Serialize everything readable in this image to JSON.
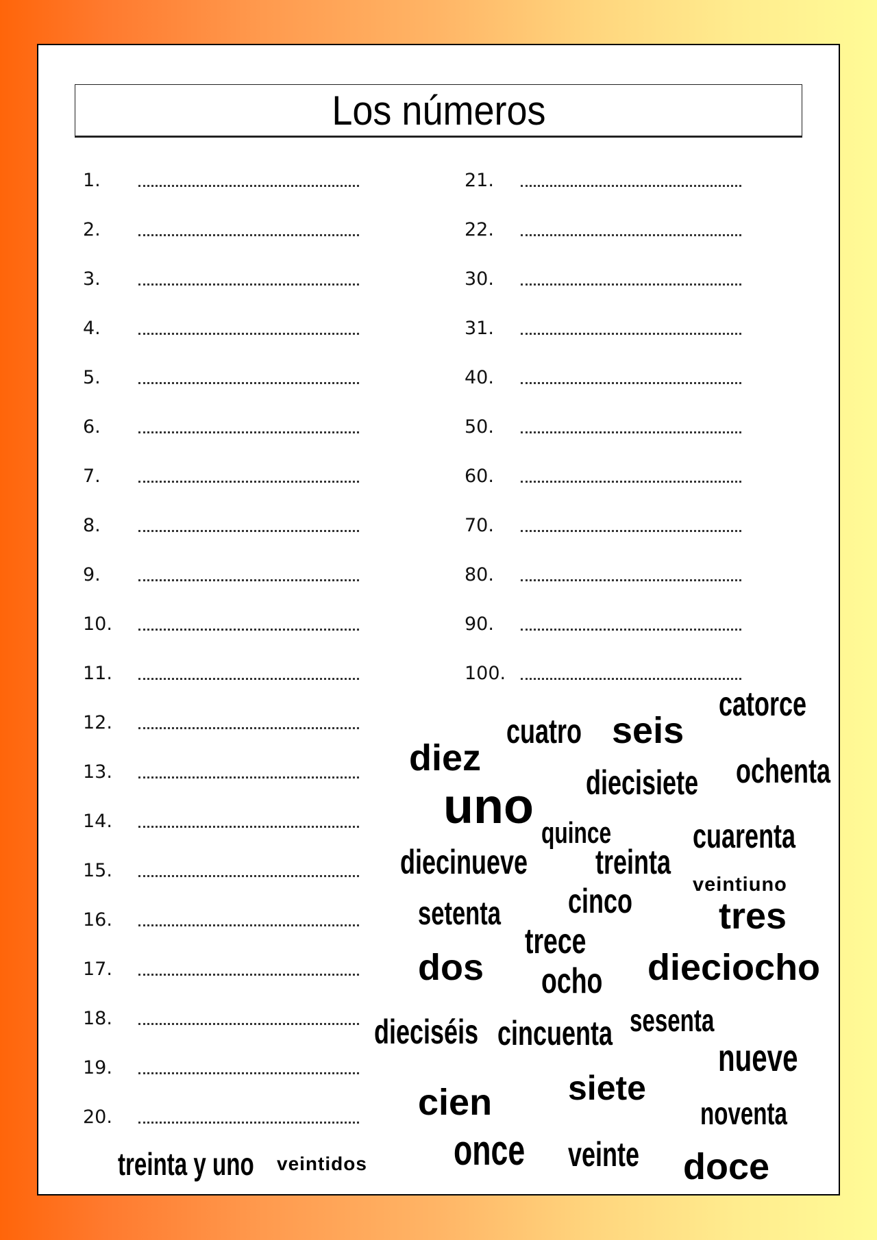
{
  "title": "Los números",
  "left_column": [
    "1.",
    "2.",
    "3.",
    "4.",
    "5.",
    "6.",
    "7.",
    "8.",
    "9.",
    "10.",
    "11.",
    "12.",
    "13.",
    "14.",
    "15.",
    "16.",
    "17.",
    "18.",
    "19.",
    "20."
  ],
  "right_column": [
    "21.",
    "22.",
    "30.",
    "31.",
    "40.",
    "50.",
    "60.",
    "70.",
    "80.",
    "90.",
    "100."
  ],
  "word_bank": [
    "catorce",
    "cuatro",
    "seis",
    "diez",
    "diecisiete",
    "ochenta",
    "uno",
    "quince",
    "cuarenta",
    "diecinueve",
    "treinta",
    "veintiuno",
    "cinco",
    "setenta",
    "tres",
    "trece",
    "dos",
    "dieciocho",
    "ocho",
    "dieciséis",
    "cincuenta",
    "sesenta",
    "nueve",
    "siete",
    "cien",
    "noventa",
    "once",
    "veinte",
    "doce",
    "treinta y uno",
    "veintidos"
  ],
  "colors": {
    "background_left": "#ff650a",
    "background_right": "#fffb96"
  }
}
